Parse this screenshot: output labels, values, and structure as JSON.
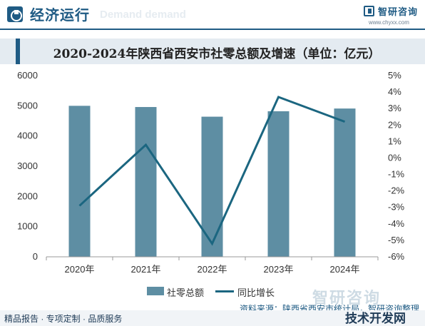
{
  "header": {
    "section_title": "经济运行",
    "section_subtitle": "Demand demand",
    "brand_name": "智研咨询",
    "brand_url": "www.chyxx.com"
  },
  "colors": {
    "brand": "#1f5b84",
    "bar": "#5e8ea3",
    "line": "#1b6680",
    "title_band": "#e4ebf1"
  },
  "chart_data": {
    "type": "bar",
    "title": "2020-2024年陕西省西安市社零总额及增速（单位：亿元）",
    "categories": [
      "2020年",
      "2021年",
      "2022年",
      "2023年",
      "2024年"
    ],
    "series": [
      {
        "name": "社零总额",
        "type": "bar",
        "axis": "left",
        "values": [
          5000,
          4960,
          4640,
          4820,
          4910
        ]
      },
      {
        "name": "同比增长",
        "type": "line",
        "axis": "right",
        "values": [
          -2.9,
          0.8,
          -5.2,
          3.7,
          2.2
        ]
      }
    ],
    "y_left": {
      "min": 0,
      "max": 6000,
      "ticks": [
        "0",
        "1000",
        "2000",
        "3000",
        "4000",
        "5000",
        "6000"
      ]
    },
    "y_right": {
      "min": -6,
      "max": 5,
      "ticks": [
        "-6%",
        "-5%",
        "-4%",
        "-3%",
        "-2%",
        "-1%",
        "0%",
        "1%",
        "2%",
        "3%",
        "4%",
        "5%"
      ]
    },
    "legend_position": "bottom",
    "grid": false
  },
  "legend": {
    "bar_label": "社零总额",
    "line_label": "同比增长"
  },
  "footer": {
    "source": "资料来源：陕西省西安市统计局，智研咨询整理",
    "tagline": "精品报告 · 专项定制 · 品质服务",
    "watermark": "智研咨询",
    "corner": "技术开发网"
  }
}
